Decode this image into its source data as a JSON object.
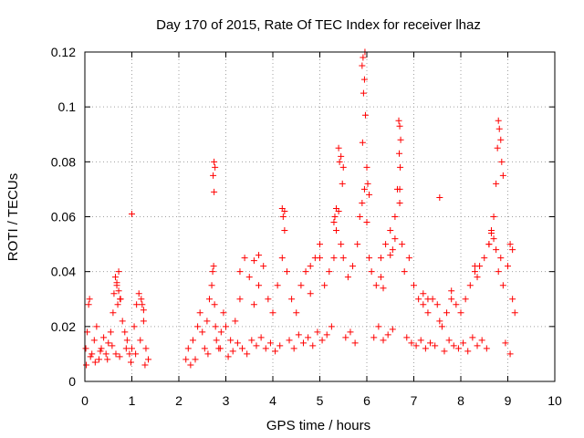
{
  "chart_data": {
    "type": "scatter",
    "title": "Day 170 of 2015, Rate Of TEC Index for receiver lhaz",
    "xlabel": "GPS time / hours",
    "ylabel": "ROTI / TECUs",
    "xlim": [
      0,
      10
    ],
    "ylim": [
      0,
      0.12
    ],
    "xticks": [
      "0",
      "1",
      "2",
      "3",
      "4",
      "5",
      "6",
      "7",
      "8",
      "9",
      "10"
    ],
    "yticks": [
      "0",
      "0.02",
      "0.04",
      "0.06",
      "0.08",
      "0.1",
      "0.12"
    ],
    "grid": true,
    "marker": "+",
    "color": "#ff0000",
    "series": [
      {
        "name": "ROTI",
        "x": [
          0.02,
          0.05,
          0.08,
          0.1,
          0.15,
          0.2,
          0.25,
          0.3,
          0.35,
          0.4,
          0.45,
          0.5,
          0.55,
          0.6,
          0.62,
          0.65,
          0.68,
          0.7,
          0.72,
          0.75,
          0.8,
          0.85,
          0.9,
          0.95,
          1.0,
          1.05,
          1.1,
          1.15,
          1.2,
          1.25,
          1.3,
          1.35,
          0.03,
          0.12,
          0.22,
          0.33,
          0.48,
          0.58,
          0.66,
          0.74,
          0.88,
          0.98,
          1.08,
          1.18,
          1.28,
          2.15,
          2.2,
          2.3,
          2.4,
          2.45,
          2.5,
          2.55,
          2.6,
          2.65,
          2.7,
          2.72,
          2.74,
          2.76,
          2.78,
          2.8,
          2.85,
          2.9,
          2.95,
          3.0,
          3.1,
          3.2,
          3.3,
          3.4,
          3.5,
          3.6,
          3.7,
          3.8,
          3.9,
          4.0,
          4.1,
          4.2,
          4.25,
          4.3,
          4.4,
          4.5,
          4.6,
          4.7,
          4.8,
          4.9,
          5.0,
          5.1,
          5.2,
          5.3,
          5.35,
          5.4,
          5.45,
          5.5,
          5.6,
          5.7,
          5.8,
          5.85,
          5.9,
          5.95,
          6.0,
          6.05,
          6.1,
          6.2,
          6.3,
          6.4,
          6.5,
          6.6,
          6.65,
          6.7,
          6.75,
          6.8,
          6.9,
          7.0,
          7.1,
          7.2,
          7.3,
          7.4,
          7.5,
          7.55,
          7.6,
          7.7,
          7.8,
          7.9,
          8.0,
          8.1,
          8.2,
          8.3,
          8.4,
          8.5,
          8.6,
          8.65,
          8.7,
          8.75,
          8.8,
          8.85,
          8.9,
          9.0,
          9.1,
          9.15,
          2.25,
          2.35,
          2.62,
          2.88,
          3.05,
          3.15,
          3.25,
          3.35,
          3.45,
          3.55,
          3.65,
          3.75,
          3.85,
          3.95,
          4.05,
          4.15,
          4.35,
          4.45,
          4.55,
          4.65,
          4.75,
          4.85,
          4.95,
          5.05,
          5.15,
          5.25,
          5.55,
          5.65,
          5.75,
          6.15,
          6.25,
          6.35,
          6.45,
          6.55,
          6.85,
          6.95,
          7.05,
          7.15,
          7.25,
          7.35,
          7.45,
          7.65,
          7.75,
          7.85,
          7.95,
          8.05,
          8.15,
          8.25,
          8.35,
          8.45,
          8.55,
          8.95,
          9.05,
          1.0,
          2.75,
          2.77,
          2.73,
          2.75,
          5.4,
          5.45,
          5.5,
          5.42,
          5.48,
          5.9,
          5.92,
          5.95,
          5.97,
          5.93,
          5.91,
          5.96,
          6.68,
          6.7,
          6.72,
          6.69,
          6.71,
          6.7,
          8.8,
          8.82,
          8.85,
          8.78,
          8.87,
          8.9,
          8.75,
          7.55,
          4.2,
          4.25,
          4.22,
          9.05,
          9.1,
          5.0,
          4.8,
          3.6,
          3.7,
          3.3,
          6.6,
          6.55,
          6.5,
          8.6,
          8.65,
          8.7,
          8.3,
          8.35,
          5.3,
          5.35,
          5.32,
          6.0,
          6.02,
          6.05,
          6.3,
          6.35,
          7.2,
          7.3,
          7.8,
          0.68,
          0.72,
          0.76,
          1.22,
          1.25
        ],
        "y": [
          0.012,
          0.018,
          0.028,
          0.03,
          0.01,
          0.015,
          0.02,
          0.008,
          0.012,
          0.016,
          0.01,
          0.014,
          0.018,
          0.025,
          0.032,
          0.038,
          0.035,
          0.028,
          0.04,
          0.03,
          0.022,
          0.018,
          0.015,
          0.01,
          0.012,
          0.02,
          0.028,
          0.032,
          0.03,
          0.022,
          0.012,
          0.008,
          0.006,
          0.009,
          0.007,
          0.011,
          0.008,
          0.013,
          0.01,
          0.009,
          0.012,
          0.007,
          0.01,
          0.015,
          0.006,
          0.008,
          0.012,
          0.015,
          0.02,
          0.025,
          0.018,
          0.012,
          0.022,
          0.03,
          0.035,
          0.04,
          0.042,
          0.028,
          0.02,
          0.015,
          0.012,
          0.018,
          0.025,
          0.02,
          0.015,
          0.022,
          0.03,
          0.045,
          0.038,
          0.028,
          0.035,
          0.042,
          0.03,
          0.025,
          0.035,
          0.045,
          0.055,
          0.04,
          0.03,
          0.025,
          0.035,
          0.04,
          0.032,
          0.045,
          0.05,
          0.035,
          0.04,
          0.045,
          0.055,
          0.062,
          0.05,
          0.045,
          0.038,
          0.042,
          0.05,
          0.06,
          0.065,
          0.07,
          0.058,
          0.045,
          0.04,
          0.035,
          0.045,
          0.05,
          0.055,
          0.06,
          0.07,
          0.065,
          0.05,
          0.04,
          0.045,
          0.035,
          0.03,
          0.028,
          0.025,
          0.03,
          0.028,
          0.022,
          0.02,
          0.025,
          0.03,
          0.028,
          0.025,
          0.03,
          0.035,
          0.04,
          0.042,
          0.045,
          0.05,
          0.055,
          0.052,
          0.048,
          0.04,
          0.045,
          0.035,
          0.042,
          0.03,
          0.025,
          0.006,
          0.008,
          0.01,
          0.012,
          0.009,
          0.011,
          0.014,
          0.012,
          0.01,
          0.015,
          0.013,
          0.016,
          0.012,
          0.014,
          0.011,
          0.013,
          0.015,
          0.012,
          0.017,
          0.014,
          0.016,
          0.013,
          0.018,
          0.015,
          0.017,
          0.02,
          0.016,
          0.018,
          0.014,
          0.016,
          0.02,
          0.015,
          0.017,
          0.019,
          0.016,
          0.014,
          0.013,
          0.015,
          0.012,
          0.014,
          0.013,
          0.011,
          0.015,
          0.013,
          0.012,
          0.014,
          0.011,
          0.016,
          0.013,
          0.015,
          0.012,
          0.014,
          0.01,
          0.061,
          0.08,
          0.078,
          0.075,
          0.069,
          0.085,
          0.082,
          0.078,
          0.08,
          0.072,
          0.115,
          0.118,
          0.11,
          0.097,
          0.105,
          0.087,
          0.12,
          0.095,
          0.093,
          0.088,
          0.083,
          0.078,
          0.07,
          0.095,
          0.092,
          0.088,
          0.085,
          0.08,
          0.075,
          0.072,
          0.067,
          0.063,
          0.062,
          0.06,
          0.05,
          0.048,
          0.045,
          0.042,
          0.044,
          0.046,
          0.04,
          0.052,
          0.048,
          0.046,
          0.05,
          0.054,
          0.06,
          0.042,
          0.038,
          0.058,
          0.063,
          0.06,
          0.078,
          0.072,
          0.068,
          0.038,
          0.034,
          0.032,
          0.03,
          0.033,
          0.036,
          0.033,
          0.03,
          0.028,
          0.026
        ]
      }
    ]
  }
}
